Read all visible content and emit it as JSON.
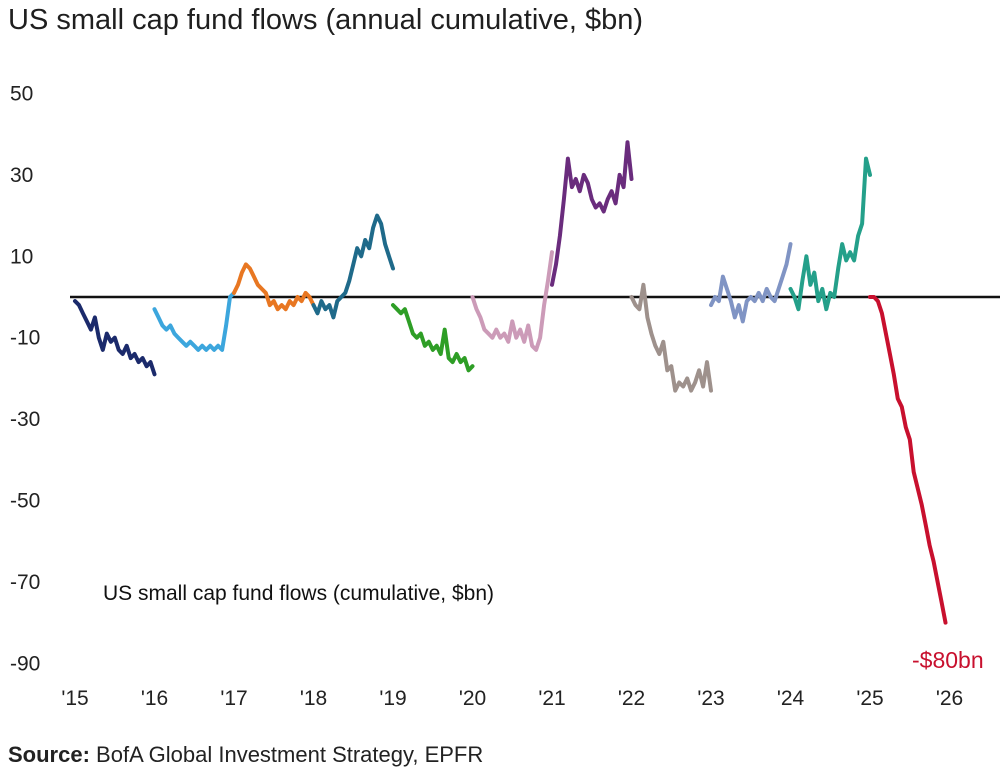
{
  "title": "US small cap fund flows (annual cumulative, $bn)",
  "source": {
    "label": "Source:",
    "text": "BofA Global Investment Strategy, EPFR"
  },
  "chart_data": {
    "type": "line",
    "title": "US small cap fund flows (annual cumulative, $bn)",
    "inner_label": "US small cap fund flows (cumulative, $bn)",
    "xlabel": "",
    "ylabel": "",
    "ylim": [
      -90,
      50
    ],
    "xlim": [
      2015,
      2026.05
    ],
    "y_ticks": [
      50,
      30,
      10,
      -10,
      -30,
      -50,
      -70,
      -90
    ],
    "x_ticks": [
      {
        "label": "'15",
        "value": 2015
      },
      {
        "label": "'16",
        "value": 2016
      },
      {
        "label": "'17",
        "value": 2017
      },
      {
        "label": "'18",
        "value": 2018
      },
      {
        "label": "'19",
        "value": 2019
      },
      {
        "label": "'20",
        "value": 2020
      },
      {
        "label": "'21",
        "value": 2021
      },
      {
        "label": "'22",
        "value": 2022
      },
      {
        "label": "'23",
        "value": 2023
      },
      {
        "label": "'24",
        "value": 2024
      },
      {
        "label": "'25",
        "value": 2025
      },
      {
        "label": "'26",
        "value": 2026
      }
    ],
    "zero_line": 0,
    "end_annotation": {
      "text": "-$80bn",
      "x": 2025.95,
      "y": -80,
      "color": "#c8102e"
    },
    "series": [
      {
        "name": "2015",
        "color": "#1b2a6b",
        "points": [
          [
            2015.0,
            -1
          ],
          [
            2015.05,
            -2
          ],
          [
            2015.1,
            -4
          ],
          [
            2015.15,
            -6
          ],
          [
            2015.2,
            -8
          ],
          [
            2015.25,
            -5
          ],
          [
            2015.3,
            -10
          ],
          [
            2015.35,
            -13
          ],
          [
            2015.4,
            -9
          ],
          [
            2015.45,
            -11
          ],
          [
            2015.5,
            -10
          ],
          [
            2015.55,
            -13
          ],
          [
            2015.6,
            -14
          ],
          [
            2015.65,
            -12
          ],
          [
            2015.7,
            -15
          ],
          [
            2015.75,
            -14
          ],
          [
            2015.8,
            -16
          ],
          [
            2015.85,
            -15
          ],
          [
            2015.9,
            -17
          ],
          [
            2015.95,
            -16
          ],
          [
            2016.0,
            -19
          ]
        ]
      },
      {
        "name": "2016",
        "color": "#3ca6dd",
        "points": [
          [
            2016.0,
            -3
          ],
          [
            2016.05,
            -5
          ],
          [
            2016.1,
            -7
          ],
          [
            2016.15,
            -8
          ],
          [
            2016.2,
            -7
          ],
          [
            2016.25,
            -9
          ],
          [
            2016.3,
            -10
          ],
          [
            2016.35,
            -11
          ],
          [
            2016.4,
            -12
          ],
          [
            2016.45,
            -11
          ],
          [
            2016.5,
            -12
          ],
          [
            2016.55,
            -13
          ],
          [
            2016.6,
            -12
          ],
          [
            2016.65,
            -13
          ],
          [
            2016.7,
            -12
          ],
          [
            2016.75,
            -13
          ],
          [
            2016.8,
            -12
          ],
          [
            2016.85,
            -13
          ],
          [
            2016.9,
            -7
          ],
          [
            2016.95,
            0
          ],
          [
            2017.0,
            1
          ]
        ]
      },
      {
        "name": "2017",
        "color": "#e87722",
        "points": [
          [
            2017.0,
            1
          ],
          [
            2017.05,
            3
          ],
          [
            2017.1,
            6
          ],
          [
            2017.15,
            8
          ],
          [
            2017.2,
            7
          ],
          [
            2017.25,
            5
          ],
          [
            2017.3,
            3
          ],
          [
            2017.35,
            2
          ],
          [
            2017.4,
            1
          ],
          [
            2017.45,
            -2
          ],
          [
            2017.5,
            -1
          ],
          [
            2017.55,
            -3
          ],
          [
            2017.6,
            -2
          ],
          [
            2017.65,
            -3
          ],
          [
            2017.7,
            -1
          ],
          [
            2017.75,
            -2
          ],
          [
            2017.8,
            0
          ],
          [
            2017.85,
            -1
          ],
          [
            2017.9,
            1
          ],
          [
            2017.95,
            0
          ],
          [
            2018.0,
            -2
          ]
        ]
      },
      {
        "name": "2018",
        "color": "#1f6a8a",
        "points": [
          [
            2018.0,
            -2
          ],
          [
            2018.05,
            -4
          ],
          [
            2018.1,
            -1
          ],
          [
            2018.15,
            -3
          ],
          [
            2018.2,
            -2
          ],
          [
            2018.25,
            -5
          ],
          [
            2018.3,
            -1
          ],
          [
            2018.35,
            0
          ],
          [
            2018.4,
            1
          ],
          [
            2018.45,
            4
          ],
          [
            2018.5,
            8
          ],
          [
            2018.55,
            12
          ],
          [
            2018.6,
            10
          ],
          [
            2018.65,
            14
          ],
          [
            2018.7,
            12
          ],
          [
            2018.75,
            17
          ],
          [
            2018.8,
            20
          ],
          [
            2018.85,
            18
          ],
          [
            2018.9,
            13
          ],
          [
            2018.95,
            10
          ],
          [
            2019.0,
            7
          ]
        ]
      },
      {
        "name": "2019",
        "color": "#2e9e26",
        "points": [
          [
            2019.0,
            -2
          ],
          [
            2019.05,
            -3
          ],
          [
            2019.1,
            -4
          ],
          [
            2019.15,
            -3
          ],
          [
            2019.2,
            -6
          ],
          [
            2019.25,
            -9
          ],
          [
            2019.3,
            -10
          ],
          [
            2019.35,
            -9
          ],
          [
            2019.4,
            -12
          ],
          [
            2019.45,
            -11
          ],
          [
            2019.5,
            -13
          ],
          [
            2019.55,
            -12
          ],
          [
            2019.6,
            -14
          ],
          [
            2019.65,
            -8
          ],
          [
            2019.7,
            -15
          ],
          [
            2019.75,
            -16
          ],
          [
            2019.8,
            -14
          ],
          [
            2019.85,
            -16
          ],
          [
            2019.9,
            -15
          ],
          [
            2019.95,
            -18
          ],
          [
            2020.0,
            -17
          ]
        ]
      },
      {
        "name": "2020",
        "color": "#cc9bb8",
        "points": [
          [
            2020.0,
            0
          ],
          [
            2020.05,
            -3
          ],
          [
            2020.1,
            -5
          ],
          [
            2020.15,
            -8
          ],
          [
            2020.2,
            -9
          ],
          [
            2020.25,
            -10
          ],
          [
            2020.3,
            -8
          ],
          [
            2020.35,
            -10
          ],
          [
            2020.4,
            -9
          ],
          [
            2020.45,
            -11
          ],
          [
            2020.5,
            -6
          ],
          [
            2020.55,
            -10
          ],
          [
            2020.6,
            -8
          ],
          [
            2020.65,
            -11
          ],
          [
            2020.7,
            -7
          ],
          [
            2020.75,
            -12
          ],
          [
            2020.8,
            -13
          ],
          [
            2020.85,
            -10
          ],
          [
            2020.9,
            -2
          ],
          [
            2020.95,
            4
          ],
          [
            2021.0,
            11
          ]
        ]
      },
      {
        "name": "2021",
        "color": "#6a2c7d",
        "points": [
          [
            2021.0,
            3
          ],
          [
            2021.05,
            8
          ],
          [
            2021.1,
            15
          ],
          [
            2021.15,
            24
          ],
          [
            2021.2,
            34
          ],
          [
            2021.25,
            27
          ],
          [
            2021.3,
            29
          ],
          [
            2021.35,
            26
          ],
          [
            2021.4,
            30
          ],
          [
            2021.45,
            28
          ],
          [
            2021.5,
            24
          ],
          [
            2021.55,
            22
          ],
          [
            2021.6,
            23
          ],
          [
            2021.65,
            21
          ],
          [
            2021.7,
            24
          ],
          [
            2021.75,
            26
          ],
          [
            2021.8,
            23
          ],
          [
            2021.85,
            30
          ],
          [
            2021.9,
            27
          ],
          [
            2021.95,
            38
          ],
          [
            2022.0,
            29
          ]
        ]
      },
      {
        "name": "2022",
        "color": "#9e918c",
        "points": [
          [
            2022.0,
            0
          ],
          [
            2022.05,
            -2
          ],
          [
            2022.1,
            -3
          ],
          [
            2022.15,
            3
          ],
          [
            2022.2,
            -5
          ],
          [
            2022.25,
            -9
          ],
          [
            2022.3,
            -12
          ],
          [
            2022.35,
            -14
          ],
          [
            2022.4,
            -11
          ],
          [
            2022.45,
            -18
          ],
          [
            2022.5,
            -17
          ],
          [
            2022.55,
            -23
          ],
          [
            2022.6,
            -21
          ],
          [
            2022.65,
            -22
          ],
          [
            2022.7,
            -20
          ],
          [
            2022.75,
            -23
          ],
          [
            2022.8,
            -21
          ],
          [
            2022.85,
            -18
          ],
          [
            2022.9,
            -22
          ],
          [
            2022.95,
            -16
          ],
          [
            2023.0,
            -23
          ]
        ]
      },
      {
        "name": "2023",
        "color": "#8094c4",
        "points": [
          [
            2023.0,
            -2
          ],
          [
            2023.05,
            0
          ],
          [
            2023.1,
            -1
          ],
          [
            2023.15,
            5
          ],
          [
            2023.2,
            2
          ],
          [
            2023.25,
            -1
          ],
          [
            2023.3,
            -5
          ],
          [
            2023.35,
            -2
          ],
          [
            2023.4,
            -6
          ],
          [
            2023.45,
            -1
          ],
          [
            2023.5,
            0
          ],
          [
            2023.55,
            -1
          ],
          [
            2023.6,
            1
          ],
          [
            2023.65,
            -1
          ],
          [
            2023.7,
            2
          ],
          [
            2023.75,
            0
          ],
          [
            2023.8,
            -1
          ],
          [
            2023.85,
            2
          ],
          [
            2023.9,
            5
          ],
          [
            2023.95,
            8
          ],
          [
            2024.0,
            13
          ]
        ]
      },
      {
        "name": "2024",
        "color": "#24a08a",
        "points": [
          [
            2024.0,
            2
          ],
          [
            2024.05,
            0
          ],
          [
            2024.1,
            -3
          ],
          [
            2024.15,
            4
          ],
          [
            2024.2,
            10
          ],
          [
            2024.25,
            3
          ],
          [
            2024.3,
            6
          ],
          [
            2024.35,
            -1
          ],
          [
            2024.4,
            2
          ],
          [
            2024.45,
            -3
          ],
          [
            2024.5,
            1
          ],
          [
            2024.55,
            0
          ],
          [
            2024.6,
            7
          ],
          [
            2024.65,
            13
          ],
          [
            2024.7,
            9
          ],
          [
            2024.75,
            11
          ],
          [
            2024.8,
            9
          ],
          [
            2024.85,
            15
          ],
          [
            2024.9,
            18
          ],
          [
            2024.95,
            34
          ],
          [
            2025.0,
            30
          ]
        ]
      },
      {
        "name": "2025",
        "color": "#c8102e",
        "points": [
          [
            2025.0,
            0
          ],
          [
            2025.05,
            0
          ],
          [
            2025.1,
            -1
          ],
          [
            2025.15,
            -4
          ],
          [
            2025.2,
            -9
          ],
          [
            2025.25,
            -14
          ],
          [
            2025.3,
            -19
          ],
          [
            2025.35,
            -25
          ],
          [
            2025.4,
            -27
          ],
          [
            2025.45,
            -32
          ],
          [
            2025.5,
            -35
          ],
          [
            2025.55,
            -43
          ],
          [
            2025.6,
            -47
          ],
          [
            2025.65,
            -51
          ],
          [
            2025.7,
            -56
          ],
          [
            2025.75,
            -61
          ],
          [
            2025.8,
            -65
          ],
          [
            2025.85,
            -70
          ],
          [
            2025.9,
            -75
          ],
          [
            2025.95,
            -80
          ]
        ]
      }
    ]
  }
}
